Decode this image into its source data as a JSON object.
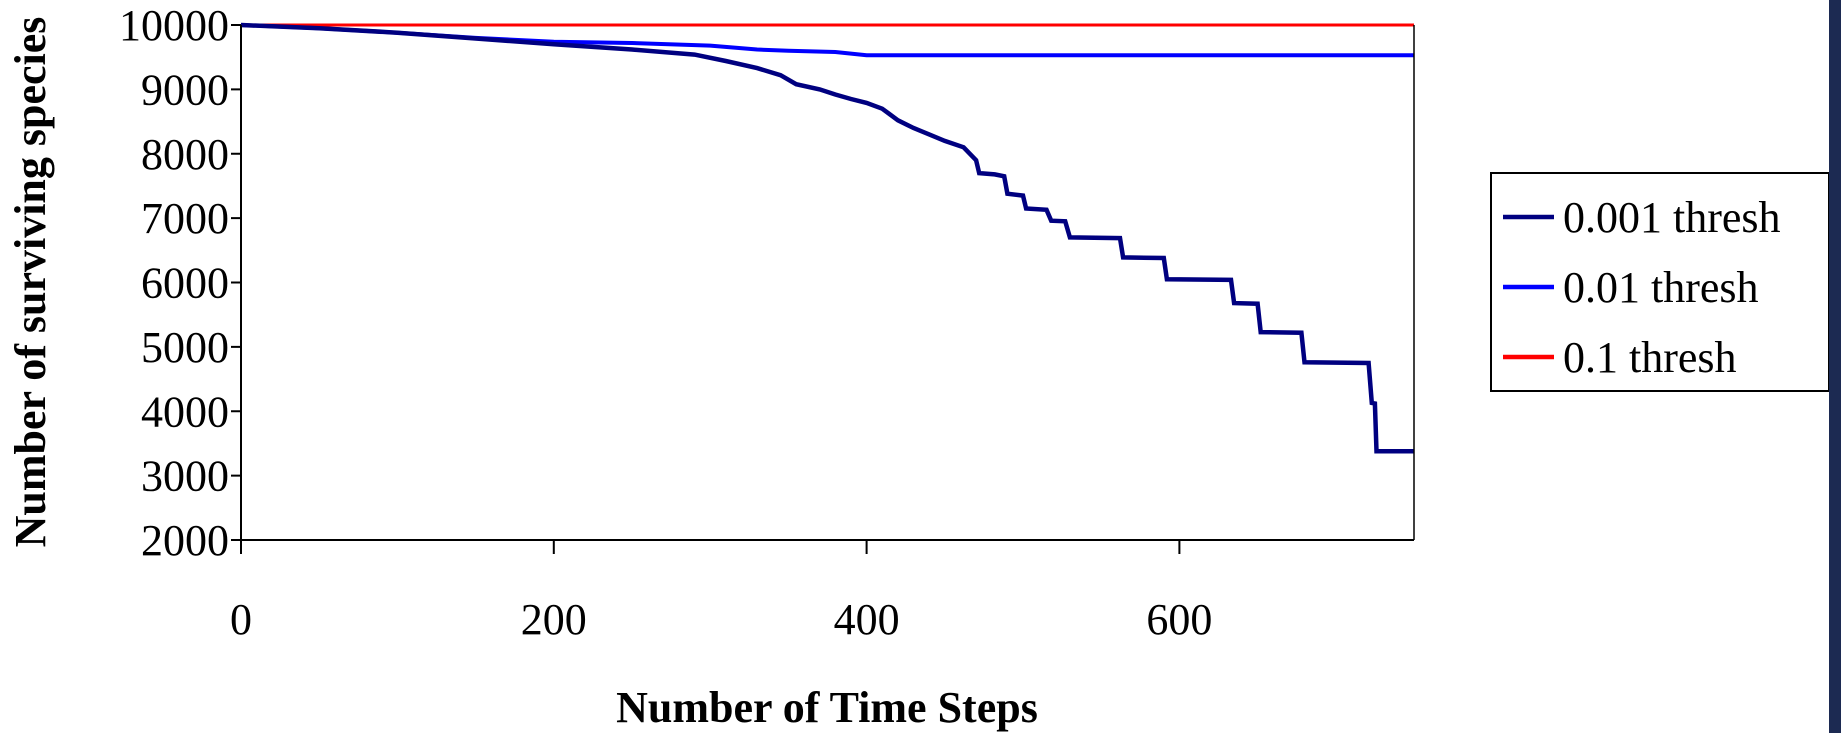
{
  "chart_data": {
    "type": "line",
    "title": "",
    "xlabel": "Number of Time Steps",
    "ylabel": "Number of surviving species",
    "xlim": [
      0,
      750
    ],
    "ylim": [
      2000,
      10000
    ],
    "x_ticks": [
      0,
      200,
      400,
      600
    ],
    "y_ticks": [
      2000,
      3000,
      4000,
      5000,
      6000,
      7000,
      8000,
      9000,
      10000
    ],
    "x_tick_labels": [
      "0",
      "200",
      "400",
      "600"
    ],
    "y_tick_labels": [
      "2000",
      "3000",
      "4000",
      "5000",
      "6000",
      "7000",
      "8000",
      "9000",
      "10000"
    ],
    "grid": false,
    "legend_position": "right",
    "series": [
      {
        "name": "0.001 thresh",
        "color": "#000080",
        "points": [
          [
            0,
            10000
          ],
          [
            50,
            9950
          ],
          [
            100,
            9880
          ],
          [
            150,
            9790
          ],
          [
            200,
            9700
          ],
          [
            250,
            9620
          ],
          [
            290,
            9540
          ],
          [
            310,
            9440
          ],
          [
            330,
            9330
          ],
          [
            345,
            9220
          ],
          [
            355,
            9080
          ],
          [
            370,
            9000
          ],
          [
            380,
            8920
          ],
          [
            390,
            8850
          ],
          [
            400,
            8790
          ],
          [
            410,
            8700
          ],
          [
            420,
            8520
          ],
          [
            430,
            8400
          ],
          [
            440,
            8300
          ],
          [
            450,
            8200
          ],
          [
            462,
            8100
          ],
          [
            470,
            7900
          ],
          [
            472,
            7700
          ],
          [
            482,
            7680
          ],
          [
            488,
            7650
          ],
          [
            490,
            7380
          ],
          [
            500,
            7350
          ],
          [
            502,
            7150
          ],
          [
            515,
            7130
          ],
          [
            518,
            6960
          ],
          [
            527,
            6950
          ],
          [
            530,
            6700
          ],
          [
            562,
            6690
          ],
          [
            564,
            6390
          ],
          [
            590,
            6380
          ],
          [
            592,
            6050
          ],
          [
            633,
            6040
          ],
          [
            635,
            5680
          ],
          [
            650,
            5670
          ],
          [
            652,
            5230
          ],
          [
            678,
            5220
          ],
          [
            680,
            4760
          ],
          [
            721,
            4750
          ],
          [
            723,
            4130
          ],
          [
            725,
            4120
          ],
          [
            726,
            3380
          ],
          [
            750,
            3380
          ]
        ]
      },
      {
        "name": "0.01 thresh",
        "color": "#0000FF",
        "points": [
          [
            0,
            10000
          ],
          [
            50,
            9950
          ],
          [
            100,
            9880
          ],
          [
            150,
            9800
          ],
          [
            200,
            9740
          ],
          [
            250,
            9720
          ],
          [
            300,
            9680
          ],
          [
            330,
            9620
          ],
          [
            350,
            9600
          ],
          [
            380,
            9580
          ],
          [
            400,
            9530
          ],
          [
            450,
            9530
          ],
          [
            500,
            9530
          ],
          [
            600,
            9530
          ],
          [
            750,
            9530
          ]
        ]
      },
      {
        "name": "0.1 thresh",
        "color": "#FF0000",
        "points": [
          [
            0,
            10000
          ],
          [
            750,
            10000
          ]
        ]
      }
    ]
  }
}
